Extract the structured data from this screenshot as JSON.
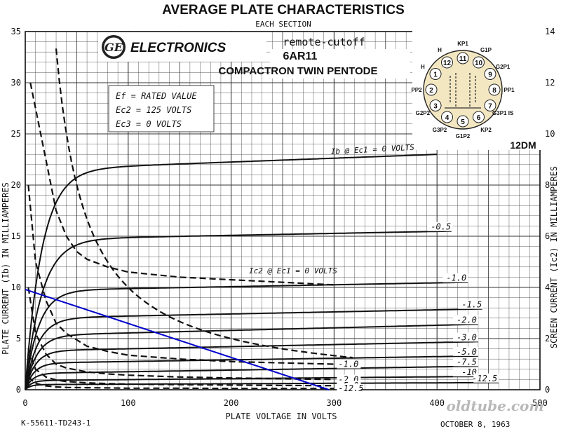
{
  "chart_data": {
    "type": "line",
    "title": "AVERAGE PLATE CHARACTERISTICS",
    "subtitle": "EACH SECTION",
    "brand": "ELECTRONICS",
    "tube_type": "6AR11",
    "tube_family": "COMPACTRON TWIN PENTODE",
    "annotation": "remote-cutoff",
    "basing": "12DM",
    "conditions": [
      "Ef = RATED VALUE",
      "Ec2 = 125 VOLTS",
      "Ec3 = 0 VOLTS"
    ],
    "xlabel": "PLATE VOLTAGE IN VOLTS",
    "ylabel": "PLATE CURRENT (Ib) IN MILLIAMPERES",
    "y2label": "SCREEN CURRENT (Ic2) IN MILLIAMPERES",
    "xlim": [
      0,
      500
    ],
    "ylim": [
      0,
      35
    ],
    "y2lim": [
      0,
      14
    ],
    "xticks": [
      0,
      100,
      200,
      300,
      400,
      500
    ],
    "yticks": [
      0,
      5,
      10,
      15,
      20,
      25,
      30,
      35
    ],
    "y2ticks": [
      0,
      2,
      4,
      6,
      8,
      10,
      12,
      14
    ],
    "grid": true,
    "plate_label": "Ib @ Ec1 = 0 VOLTS",
    "screen_label": "Ic2 @ Ec1 = 0 VOLTS",
    "plate_series": [
      {
        "name": "0",
        "label": "",
        "knee": 50,
        "iMax": 21.5,
        "iEnd": 23.0,
        "xEnd": 400
      },
      {
        "name": "-0.5",
        "label": "-0.5",
        "knee": 50,
        "iMax": 14.7,
        "iEnd": 15.5,
        "xEnd": 415
      },
      {
        "name": "-1.0",
        "label": "-1.0",
        "knee": 40,
        "iMax": 9.7,
        "iEnd": 10.5,
        "xEnd": 430
      },
      {
        "name": "-1.5",
        "label": "-1.5",
        "knee": 38,
        "iMax": 7.0,
        "iEnd": 7.9,
        "xEnd": 445
      },
      {
        "name": "-2.0",
        "label": "-2.0",
        "knee": 35,
        "iMax": 5.3,
        "iEnd": 6.4,
        "xEnd": 440
      },
      {
        "name": "-3.0",
        "label": "-3.0",
        "knee": 30,
        "iMax": 3.8,
        "iEnd": 4.7,
        "xEnd": 440
      },
      {
        "name": "-5.0",
        "label": "-5.0",
        "knee": 26,
        "iMax": 2.6,
        "iEnd": 3.3,
        "xEnd": 440
      },
      {
        "name": "-7.5",
        "label": "-7.5",
        "knee": 22,
        "iMax": 1.6,
        "iEnd": 2.3,
        "xEnd": 440
      },
      {
        "name": "-10",
        "label": "-10",
        "knee": 18,
        "iMax": 0.9,
        "iEnd": 1.3,
        "xEnd": 440
      },
      {
        "name": "-12.5",
        "label": "-12.5",
        "knee": 15,
        "iMax": 0.5,
        "iEnd": 0.7,
        "xEnd": 460
      }
    ],
    "screen_series": [
      {
        "name": "0",
        "label": "",
        "x": [
          5,
          20,
          30,
          40,
          50,
          60,
          80,
          100,
          150,
          200,
          250,
          300
        ],
        "ic2": [
          12.0,
          9.0,
          7.0,
          6.0,
          5.4,
          5.1,
          4.8,
          4.6,
          4.4,
          4.3,
          4.2,
          4.1
        ]
      },
      {
        "name": "-1.0",
        "label": "-1.0",
        "x": [
          3,
          10,
          20,
          30,
          40,
          60,
          80,
          100,
          150,
          200,
          250,
          300
        ],
        "ic2": [
          8.0,
          5.0,
          3.5,
          2.6,
          2.2,
          1.7,
          1.5,
          1.35,
          1.2,
          1.1,
          1.05,
          1.0
        ]
      },
      {
        "name": "-2.0",
        "label": "-2.0",
        "x": [
          3,
          10,
          20,
          30,
          40,
          60,
          80,
          100,
          150,
          200,
          250,
          300
        ],
        "ic2": [
          4.0,
          2.2,
          1.4,
          1.0,
          0.85,
          0.7,
          0.62,
          0.57,
          0.5,
          0.46,
          0.43,
          0.4
        ]
      },
      {
        "name": "-5.0",
        "label": "-5.0",
        "x": [
          3,
          10,
          20,
          30,
          40,
          60,
          80,
          100,
          150,
          200,
          250,
          300
        ],
        "ic2": [
          1.6,
          0.8,
          0.5,
          0.38,
          0.32,
          0.27,
          0.24,
          0.22,
          0.2,
          0.18,
          0.17,
          0.16
        ]
      },
      {
        "name": "-12.5",
        "label": "-12.5",
        "x": [
          3,
          10,
          20,
          30,
          40,
          60,
          80,
          100,
          150,
          200,
          250,
          300
        ],
        "ic2": [
          0.5,
          0.25,
          0.15,
          0.11,
          0.09,
          0.08,
          0.07,
          0.06,
          0.06,
          0.05,
          0.05,
          0.05
        ]
      }
    ],
    "power_hyperbola": {
      "watts": 1.0
    },
    "load_line": {
      "x": [
        0,
        295
      ],
      "y": [
        9.8,
        0
      ],
      "color": "#0000cc"
    },
    "pins": [
      "1",
      "2",
      "3",
      "4",
      "5",
      "6",
      "7",
      "8",
      "9",
      "10",
      "11",
      "12"
    ],
    "pin_labels": [
      "H",
      "PP2",
      "G2P2",
      "G3P2",
      "G1P2",
      "KP2",
      "G3P1 IS",
      "PP1",
      "G2P1",
      "G1P",
      "KP1",
      "H"
    ],
    "footer_left": "K-55611-TD243-1",
    "footer_right": "OCTOBER 8, 1963",
    "watermark": "oldtube.com"
  }
}
